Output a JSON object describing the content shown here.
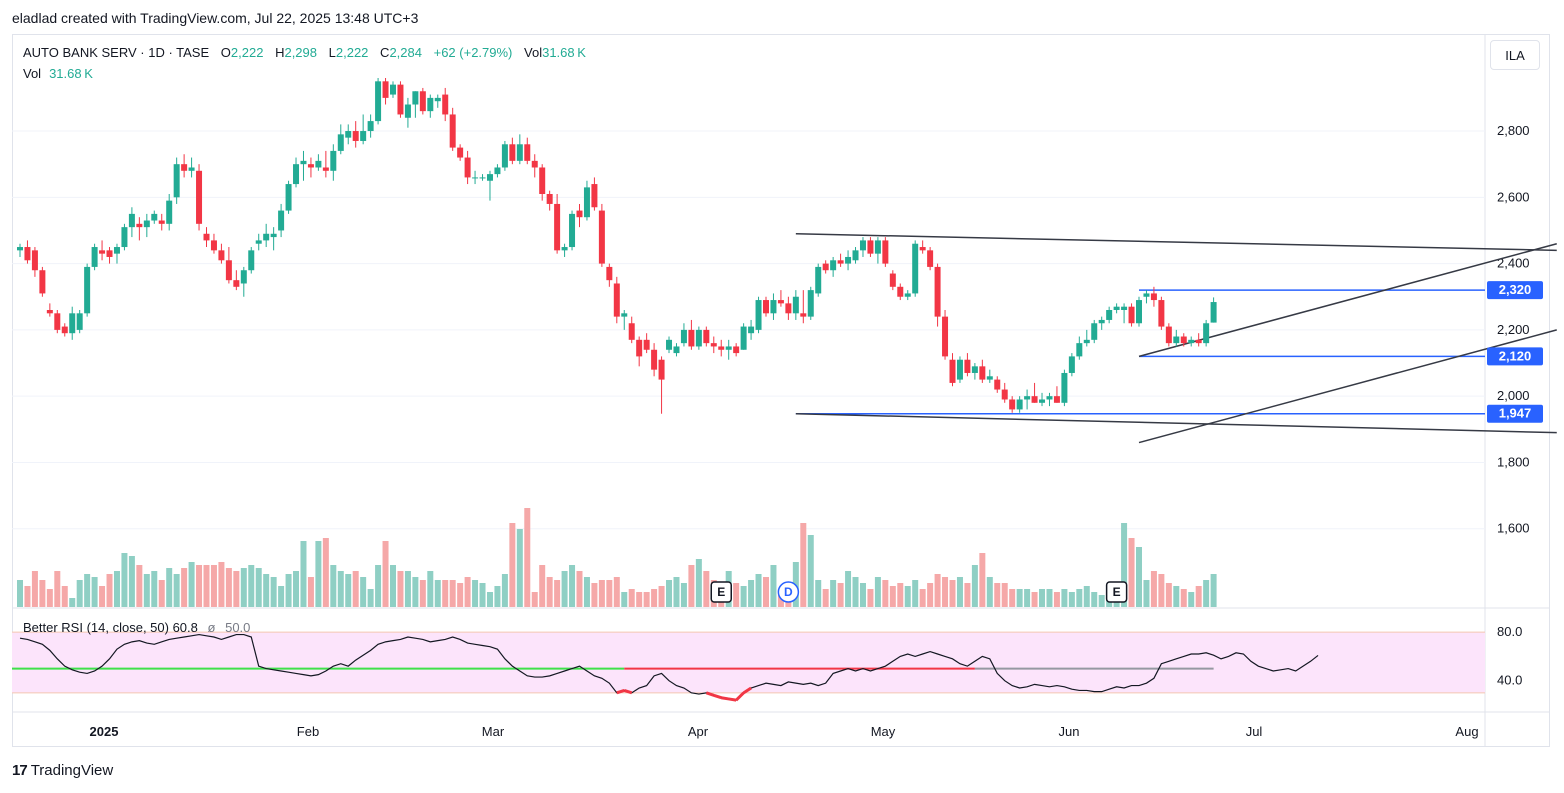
{
  "header": {
    "attribution": "eladlad created with TradingView.com, Jul 22, 2025 13:48 UTC+3"
  },
  "legend": {
    "symbol": "AUTO BANK SERV · 1D · TASE",
    "o_label": "O",
    "o": "2,222",
    "h_label": "H",
    "h": "2,298",
    "l_label": "L",
    "l": "2,222",
    "c_label": "C",
    "c": "2,284",
    "change": "+62 (+2.79%)",
    "vol_label": "Vol",
    "vol": "31.68 K"
  },
  "vol_legend": {
    "label": "Vol",
    "value": "31.68 K"
  },
  "rsi_legend": {
    "label": "Better RSI (14, close, 50)",
    "value": "60.8",
    "mid_symbol": "ø",
    "mid": "50.0"
  },
  "currency_button": "ILA",
  "footer": {
    "brand": "TradingView"
  },
  "chart_data": {
    "type": "candlestick",
    "symbol": "AUTO BANK SERV",
    "interval": "1D",
    "exchange": "TASE",
    "ylim": [
      1560,
      2960
    ],
    "y_ticks": [
      "2,800",
      "2,600",
      "2,400",
      "2,200",
      "2,000",
      "1,800",
      "1,600"
    ],
    "x_ticks": [
      "2025",
      "Feb",
      "Mar",
      "Apr",
      "May",
      "Jun",
      "Jul",
      "Aug"
    ],
    "price_labels": [
      {
        "text": "2,320",
        "value": 2320
      },
      {
        "text": "2,120",
        "value": 2120
      },
      {
        "text": "1,947",
        "value": 1947
      }
    ],
    "horizontal_lines": [
      2320,
      2120,
      1947
    ],
    "event_markers": [
      {
        "label": "E",
        "type": "earnings",
        "index": 94
      },
      {
        "label": "D",
        "type": "dividend",
        "index": 103
      },
      {
        "label": "E",
        "type": "earnings",
        "index": 147
      }
    ],
    "candles": [
      [
        2440,
        2460,
        2420,
        2450
      ],
      [
        2450,
        2470,
        2400,
        2410
      ],
      [
        2440,
        2450,
        2360,
        2380
      ],
      [
        2380,
        2390,
        2300,
        2310
      ],
      [
        2260,
        2280,
        2240,
        2250
      ],
      [
        2250,
        2260,
        2190,
        2200
      ],
      [
        2210,
        2220,
        2180,
        2190
      ],
      [
        2190,
        2270,
        2170,
        2250
      ],
      [
        2200,
        2260,
        2190,
        2250
      ],
      [
        2250,
        2400,
        2240,
        2390
      ],
      [
        2390,
        2460,
        2380,
        2450
      ],
      [
        2440,
        2470,
        2410,
        2430
      ],
      [
        2440,
        2450,
        2400,
        2420
      ],
      [
        2430,
        2460,
        2400,
        2450
      ],
      [
        2450,
        2520,
        2440,
        2510
      ],
      [
        2510,
        2570,
        2480,
        2550
      ],
      [
        2520,
        2540,
        2470,
        2510
      ],
      [
        2510,
        2550,
        2480,
        2530
      ],
      [
        2530,
        2560,
        2520,
        2550
      ],
      [
        2530,
        2550,
        2500,
        2520
      ],
      [
        2520,
        2610,
        2500,
        2590
      ],
      [
        2600,
        2720,
        2580,
        2700
      ],
      [
        2700,
        2730,
        2660,
        2680
      ],
      [
        2680,
        2720,
        2660,
        2690
      ],
      [
        2680,
        2700,
        2500,
        2520
      ],
      [
        2490,
        2510,
        2450,
        2470
      ],
      [
        2470,
        2490,
        2430,
        2440
      ],
      [
        2440,
        2460,
        2400,
        2410
      ],
      [
        2410,
        2450,
        2340,
        2350
      ],
      [
        2350,
        2380,
        2320,
        2330
      ],
      [
        2340,
        2390,
        2300,
        2380
      ],
      [
        2380,
        2450,
        2370,
        2440
      ],
      [
        2460,
        2490,
        2440,
        2470
      ],
      [
        2470,
        2520,
        2450,
        2490
      ],
      [
        2480,
        2510,
        2440,
        2490
      ],
      [
        2500,
        2580,
        2480,
        2560
      ],
      [
        2560,
        2650,
        2550,
        2640
      ],
      [
        2640,
        2720,
        2630,
        2700
      ],
      [
        2700,
        2740,
        2650,
        2710
      ],
      [
        2700,
        2720,
        2660,
        2690
      ],
      [
        2690,
        2730,
        2680,
        2710
      ],
      [
        2690,
        2740,
        2660,
        2680
      ],
      [
        2680,
        2760,
        2650,
        2740
      ],
      [
        2740,
        2820,
        2730,
        2790
      ],
      [
        2780,
        2820,
        2760,
        2800
      ],
      [
        2800,
        2830,
        2750,
        2770
      ],
      [
        2770,
        2850,
        2760,
        2800
      ],
      [
        2800,
        2850,
        2780,
        2830
      ],
      [
        2830,
        2960,
        2820,
        2950
      ],
      [
        2950,
        2960,
        2880,
        2900
      ],
      [
        2910,
        2950,
        2900,
        2940
      ],
      [
        2940,
        2950,
        2840,
        2850
      ],
      [
        2840,
        2900,
        2810,
        2880
      ],
      [
        2880,
        2920,
        2840,
        2920
      ],
      [
        2920,
        2930,
        2850,
        2860
      ],
      [
        2860,
        2910,
        2840,
        2900
      ],
      [
        2890,
        2910,
        2870,
        2900
      ],
      [
        2910,
        2930,
        2830,
        2850
      ],
      [
        2850,
        2870,
        2740,
        2750
      ],
      [
        2750,
        2760,
        2710,
        2720
      ],
      [
        2720,
        2740,
        2640,
        2660
      ],
      [
        2660,
        2680,
        2640,
        2660
      ],
      [
        2660,
        2670,
        2650,
        2660
      ],
      [
        2650,
        2680,
        2590,
        2670
      ],
      [
        2670,
        2700,
        2660,
        2690
      ],
      [
        2690,
        2770,
        2680,
        2760
      ],
      [
        2760,
        2780,
        2700,
        2710
      ],
      [
        2710,
        2790,
        2700,
        2760
      ],
      [
        2760,
        2780,
        2700,
        2710
      ],
      [
        2710,
        2730,
        2660,
        2690
      ],
      [
        2690,
        2700,
        2590,
        2610
      ],
      [
        2610,
        2620,
        2560,
        2580
      ],
      [
        2580,
        2610,
        2430,
        2440
      ],
      [
        2440,
        2460,
        2420,
        2450
      ],
      [
        2450,
        2560,
        2440,
        2550
      ],
      [
        2560,
        2580,
        2510,
        2540
      ],
      [
        2540,
        2650,
        2530,
        2630
      ],
      [
        2640,
        2660,
        2560,
        2570
      ],
      [
        2560,
        2580,
        2390,
        2400
      ],
      [
        2390,
        2400,
        2330,
        2350
      ],
      [
        2340,
        2360,
        2220,
        2240
      ],
      [
        2240,
        2260,
        2200,
        2250
      ],
      [
        2220,
        2240,
        2160,
        2170
      ],
      [
        2170,
        2180,
        2090,
        2120
      ],
      [
        2170,
        2190,
        2130,
        2140
      ],
      [
        2140,
        2160,
        2060,
        2080
      ],
      [
        2110,
        2120,
        1947,
        2050
      ],
      [
        2140,
        2180,
        2130,
        2170
      ],
      [
        2130,
        2160,
        2120,
        2150
      ],
      [
        2160,
        2220,
        2150,
        2200
      ],
      [
        2200,
        2230,
        2140,
        2150
      ],
      [
        2150,
        2210,
        2140,
        2200
      ],
      [
        2200,
        2210,
        2150,
        2160
      ],
      [
        2160,
        2180,
        2130,
        2150
      ],
      [
        2150,
        2170,
        2120,
        2140
      ],
      [
        2140,
        2170,
        2110,
        2150
      ],
      [
        2150,
        2160,
        2120,
        2130
      ],
      [
        2140,
        2220,
        2140,
        2210
      ],
      [
        2190,
        2230,
        2170,
        2210
      ],
      [
        2200,
        2300,
        2190,
        2290
      ],
      [
        2290,
        2300,
        2240,
        2250
      ],
      [
        2250,
        2310,
        2230,
        2290
      ],
      [
        2290,
        2320,
        2270,
        2280
      ],
      [
        2280,
        2300,
        2230,
        2250
      ],
      [
        2250,
        2320,
        2230,
        2300
      ],
      [
        2250,
        2320,
        2220,
        2240
      ],
      [
        2240,
        2330,
        2230,
        2320
      ],
      [
        2310,
        2400,
        2300,
        2390
      ],
      [
        2400,
        2410,
        2370,
        2380
      ],
      [
        2380,
        2420,
        2360,
        2410
      ],
      [
        2410,
        2430,
        2390,
        2400
      ],
      [
        2400,
        2440,
        2380,
        2420
      ],
      [
        2410,
        2450,
        2400,
        2440
      ],
      [
        2440,
        2480,
        2420,
        2470
      ],
      [
        2470,
        2480,
        2420,
        2430
      ],
      [
        2430,
        2480,
        2400,
        2470
      ],
      [
        2470,
        2480,
        2390,
        2400
      ],
      [
        2370,
        2380,
        2320,
        2330
      ],
      [
        2330,
        2340,
        2290,
        2300
      ],
      [
        2300,
        2320,
        2290,
        2310
      ],
      [
        2310,
        2470,
        2300,
        2460
      ],
      [
        2450,
        2470,
        2430,
        2440
      ],
      [
        2440,
        2450,
        2380,
        2390
      ],
      [
        2390,
        2400,
        2210,
        2240
      ],
      [
        2240,
        2260,
        2110,
        2120
      ],
      [
        2110,
        2130,
        2030,
        2040
      ],
      [
        2050,
        2120,
        2040,
        2110
      ],
      [
        2110,
        2130,
        2060,
        2070
      ],
      [
        2070,
        2100,
        2050,
        2090
      ],
      [
        2090,
        2110,
        2040,
        2050
      ],
      [
        2050,
        2080,
        2040,
        2060
      ],
      [
        2050,
        2060,
        2010,
        2020
      ],
      [
        2020,
        2040,
        1980,
        1990
      ],
      [
        1990,
        2000,
        1950,
        1960
      ],
      [
        1960,
        2000,
        1950,
        1990
      ],
      [
        1990,
        2020,
        1960,
        2000
      ],
      [
        2000,
        2040,
        1980,
        1980
      ],
      [
        1980,
        2010,
        1970,
        1990
      ],
      [
        1990,
        2010,
        1970,
        2000
      ],
      [
        2000,
        2030,
        1980,
        1980
      ],
      [
        1980,
        2080,
        1970,
        2070
      ],
      [
        2070,
        2130,
        2060,
        2120
      ],
      [
        2120,
        2180,
        2110,
        2160
      ],
      [
        2160,
        2200,
        2150,
        2170
      ],
      [
        2170,
        2230,
        2160,
        2220
      ],
      [
        2220,
        2240,
        2200,
        2230
      ],
      [
        2230,
        2270,
        2220,
        2260
      ],
      [
        2260,
        2280,
        2250,
        2270
      ],
      [
        2260,
        2280,
        2220,
        2270
      ],
      [
        2270,
        2280,
        2210,
        2220
      ],
      [
        2220,
        2300,
        2210,
        2290
      ],
      [
        2300,
        2320,
        2280,
        2310
      ],
      [
        2310,
        2330,
        2270,
        2290
      ],
      [
        2290,
        2300,
        2200,
        2210
      ],
      [
        2210,
        2220,
        2150,
        2160
      ],
      [
        2160,
        2200,
        2150,
        2180
      ],
      [
        2180,
        2190,
        2150,
        2160
      ],
      [
        2160,
        2180,
        2150,
        2170
      ],
      [
        2170,
        2190,
        2150,
        2160
      ],
      [
        2160,
        2230,
        2150,
        2220
      ],
      [
        2222,
        2298,
        2222,
        2284
      ]
    ],
    "volume_pct": [
      18,
      14,
      24,
      18,
      12,
      24,
      14,
      6,
      18,
      22,
      20,
      14,
      22,
      24,
      36,
      34,
      28,
      22,
      24,
      18,
      26,
      22,
      26,
      30,
      28,
      28,
      28,
      30,
      26,
      24,
      26,
      28,
      26,
      22,
      20,
      14,
      22,
      24,
      44,
      20,
      44,
      46,
      28,
      24,
      22,
      24,
      20,
      12,
      28,
      44,
      28,
      24,
      24,
      20,
      18,
      24,
      18,
      18,
      18,
      16,
      20,
      18,
      16,
      10,
      14,
      22,
      56,
      52,
      66,
      10,
      28,
      20,
      18,
      24,
      28,
      24,
      20,
      16,
      18,
      18,
      20,
      10,
      12,
      10,
      10,
      12,
      14,
      18,
      20,
      16,
      28,
      32,
      24,
      18,
      10,
      24,
      16,
      14,
      18,
      22,
      20,
      28,
      12,
      16,
      30,
      56,
      48,
      18,
      12,
      18,
      16,
      24,
      20,
      16,
      12,
      20,
      18,
      14,
      16,
      14,
      18,
      12,
      16,
      22,
      20,
      18,
      20,
      16,
      28,
      36,
      20,
      16,
      16,
      12,
      12,
      12,
      10,
      12,
      12,
      10,
      12,
      10,
      12,
      14,
      10,
      8,
      8,
      10,
      56,
      46,
      40,
      18,
      24,
      22,
      16,
      14,
      12,
      10,
      14,
      18,
      22,
      26,
      28,
      38,
      34,
      30,
      26,
      28,
      20,
      18,
      16,
      18,
      20,
      16,
      12,
      14,
      14,
      12,
      16,
      14,
      14,
      10,
      12,
      8,
      10,
      8,
      10,
      8,
      52,
      10
    ],
    "rsi": {
      "ylim": [
        20,
        90
      ],
      "levels": [
        80,
        40
      ],
      "mid": 50,
      "values": [
        75,
        74,
        72,
        70,
        65,
        58,
        52,
        49,
        47,
        46,
        48,
        52,
        58,
        66,
        70,
        72,
        73,
        71,
        70,
        72,
        74,
        75,
        76,
        77,
        78,
        77,
        76,
        74,
        76,
        78,
        78,
        76,
        52,
        50,
        49,
        48,
        47,
        46,
        45,
        44,
        45,
        48,
        52,
        54,
        52,
        57,
        61,
        65,
        70,
        72,
        73,
        74,
        76,
        75,
        74,
        72,
        73,
        74,
        76,
        74,
        71,
        70,
        69,
        68,
        66,
        58,
        52,
        48,
        44,
        43,
        43,
        44,
        46,
        48,
        50,
        52,
        48,
        44,
        42,
        38,
        30,
        32,
        30,
        34,
        36,
        44,
        46,
        40,
        36,
        34,
        30,
        29,
        30,
        28,
        26,
        25,
        24,
        30,
        34,
        36,
        38,
        37,
        36,
        39,
        38,
        37,
        38,
        36,
        38,
        46,
        48,
        50,
        48,
        50,
        48,
        50,
        52,
        56,
        60,
        62,
        60,
        62,
        64,
        62,
        60,
        58,
        54,
        52,
        56,
        60,
        58,
        46,
        40,
        36,
        34,
        35,
        37,
        36,
        35,
        36,
        35,
        33,
        32,
        32,
        31,
        31,
        33,
        35,
        34,
        36,
        36,
        38,
        42,
        54,
        56,
        58,
        60,
        62,
        62,
        63,
        61,
        58,
        60,
        63,
        62,
        56,
        52,
        50,
        48,
        49,
        50,
        48,
        52,
        56,
        60.8
      ],
      "overbought_indices": [],
      "oversold_indices": [
        80,
        81,
        92,
        93,
        94,
        95,
        96,
        97
      ]
    },
    "trendlines": [
      {
        "from": [
          104,
          2490
        ],
        "to": [
          206,
          2440
        ]
      },
      {
        "from": [
          104,
          1947
        ],
        "to": [
          206,
          1890
        ]
      },
      {
        "from": [
          150,
          2120
        ],
        "to": [
          206,
          2460
        ]
      },
      {
        "from": [
          150,
          1860
        ],
        "to": [
          206,
          2200
        ]
      }
    ]
  }
}
